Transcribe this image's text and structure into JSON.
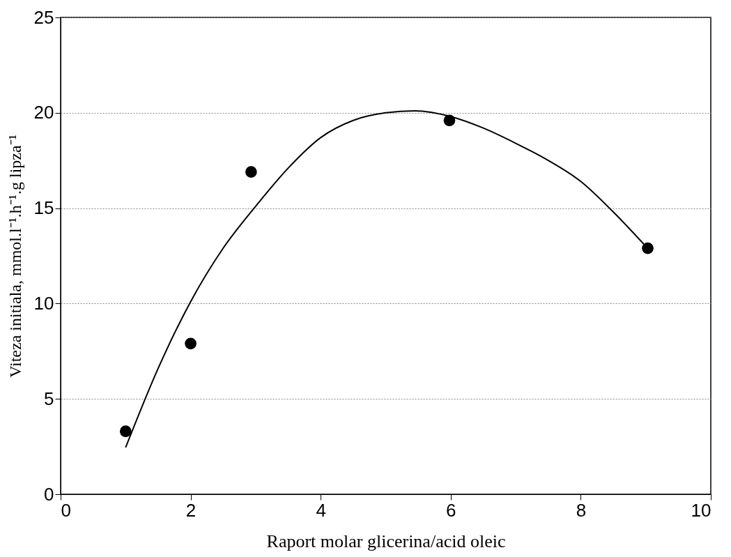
{
  "chart_data": {
    "type": "scatter",
    "xlabel": "Raport molar glicerina/acid oleic",
    "ylabel": "Viteza initiala, mmol.l⁻¹.h⁻¹.g lipza⁻¹",
    "xlim": [
      0,
      10
    ],
    "xticks": [
      0,
      2,
      4,
      6,
      8,
      10
    ],
    "ylim": [
      0,
      25
    ],
    "yticks": [
      0,
      5,
      10,
      15,
      20,
      25
    ],
    "grid": "y",
    "series": [
      {
        "color": "#000000",
        "marker": "circle",
        "x": [
          1,
          2,
          2.93,
          5.98,
          9.03
        ],
        "values": [
          3.3,
          7.9,
          16.9,
          19.6,
          12.9
        ]
      },
      {
        "type": "line",
        "color": "#000000",
        "line_style": "solid",
        "marker": "none",
        "x": [
          1,
          1.5,
          2,
          2.5,
          3,
          3.5,
          4,
          4.5,
          5,
          5.45,
          6,
          6.5,
          7,
          7.5,
          8,
          8.5,
          9
        ],
        "values": [
          2.45,
          6.6,
          10.1,
          12.9,
          15.1,
          17.1,
          18.7,
          19.6,
          20.0,
          20.1,
          19.8,
          19.2,
          18.4,
          17.5,
          16.4,
          14.8,
          13.0
        ]
      }
    ]
  }
}
